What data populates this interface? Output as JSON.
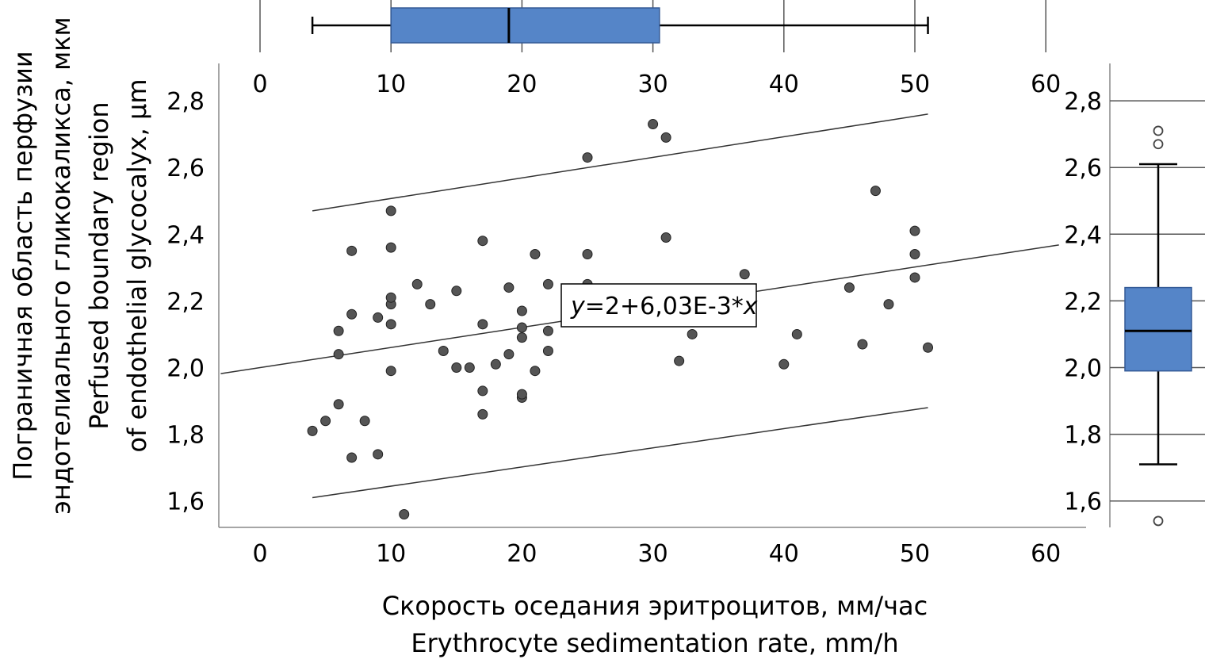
{
  "chart_data": {
    "type": "scatter",
    "xlabel_line1": "Скорость оседания эритроцитов, мм/час",
    "xlabel_line2": "Erythrocyte sedimentation rate, mm/h",
    "ylabel_line1": "Пограничная область перфузии",
    "ylabel_line2": "эндотелиального гликокаликса, мкм",
    "ylabel_line3": "Perfused boundary region",
    "ylabel_line4": "of endothelial glycocalyx, µm",
    "x_ticks": [
      "0",
      "10",
      "20",
      "30",
      "40",
      "50",
      "60"
    ],
    "y_ticks": [
      "1,6",
      "1,8",
      "2,0",
      "2,2",
      "2,4",
      "2,6",
      "2,8"
    ],
    "right_y_ticks": [
      "1,6",
      "1,8",
      "2,0",
      "2,2",
      "2,4",
      "2,6",
      "2,8"
    ],
    "xlim": [
      -3,
      63
    ],
    "ylim": [
      1.53,
      2.88
    ],
    "equation_y": "y",
    "equation_body": "=2+6,03E-3*",
    "equation_x": "x",
    "regression": {
      "intercept": 2.0,
      "slope": 0.00603,
      "x_range": [
        -3,
        61
      ]
    },
    "upper_band": [
      [
        4,
        2.47
      ],
      [
        51,
        2.76
      ]
    ],
    "lower_band": [
      [
        4,
        1.61
      ],
      [
        51,
        1.88
      ]
    ],
    "points": [
      [
        4,
        1.81
      ],
      [
        5,
        1.84
      ],
      [
        6,
        1.89
      ],
      [
        6,
        2.04
      ],
      [
        6,
        2.11
      ],
      [
        7,
        1.73
      ],
      [
        7,
        2.16
      ],
      [
        7,
        2.35
      ],
      [
        8,
        1.84
      ],
      [
        9,
        1.74
      ],
      [
        9,
        2.15
      ],
      [
        10,
        1.99
      ],
      [
        10,
        2.13
      ],
      [
        10,
        2.19
      ],
      [
        10,
        2.21
      ],
      [
        10,
        2.36
      ],
      [
        10,
        2.47
      ],
      [
        11,
        1.56
      ],
      [
        12,
        2.25
      ],
      [
        13,
        2.19
      ],
      [
        14,
        2.05
      ],
      [
        15,
        2.0
      ],
      [
        15,
        2.23
      ],
      [
        16,
        2.0
      ],
      [
        17,
        1.86
      ],
      [
        17,
        1.93
      ],
      [
        17,
        2.13
      ],
      [
        17,
        2.38
      ],
      [
        18,
        2.01
      ],
      [
        19,
        2.04
      ],
      [
        19,
        2.24
      ],
      [
        20,
        1.91
      ],
      [
        20,
        1.92
      ],
      [
        20,
        2.09
      ],
      [
        20,
        2.12
      ],
      [
        20,
        2.17
      ],
      [
        21,
        1.99
      ],
      [
        21,
        2.34
      ],
      [
        22,
        2.05
      ],
      [
        22,
        2.11
      ],
      [
        22,
        2.25
      ],
      [
        25,
        2.25
      ],
      [
        25,
        2.34
      ],
      [
        25,
        2.63
      ],
      [
        30,
        2.73
      ],
      [
        31,
        2.69
      ],
      [
        31,
        2.39
      ],
      [
        32,
        2.02
      ],
      [
        33,
        2.1
      ],
      [
        37,
        2.28
      ],
      [
        40,
        2.01
      ],
      [
        41,
        2.1
      ],
      [
        45,
        2.24
      ],
      [
        46,
        2.07
      ],
      [
        47,
        2.53
      ],
      [
        48,
        2.19
      ],
      [
        50,
        2.27
      ],
      [
        50,
        2.34
      ],
      [
        50,
        2.41
      ],
      [
        51,
        2.06
      ]
    ],
    "x_boxplot": {
      "whisker_low": 4,
      "q1": 10,
      "median": 19,
      "q3": 30.5,
      "whisker_high": 51
    },
    "y_boxplot": {
      "whisker_low": 1.71,
      "q1": 1.99,
      "median": 2.11,
      "q3": 2.24,
      "whisker_high": 2.61,
      "outliers": [
        1.54,
        2.67,
        2.71
      ]
    },
    "box_color": "#5585C8",
    "point_color": "#555555",
    "grid": "boxplot panels only"
  }
}
